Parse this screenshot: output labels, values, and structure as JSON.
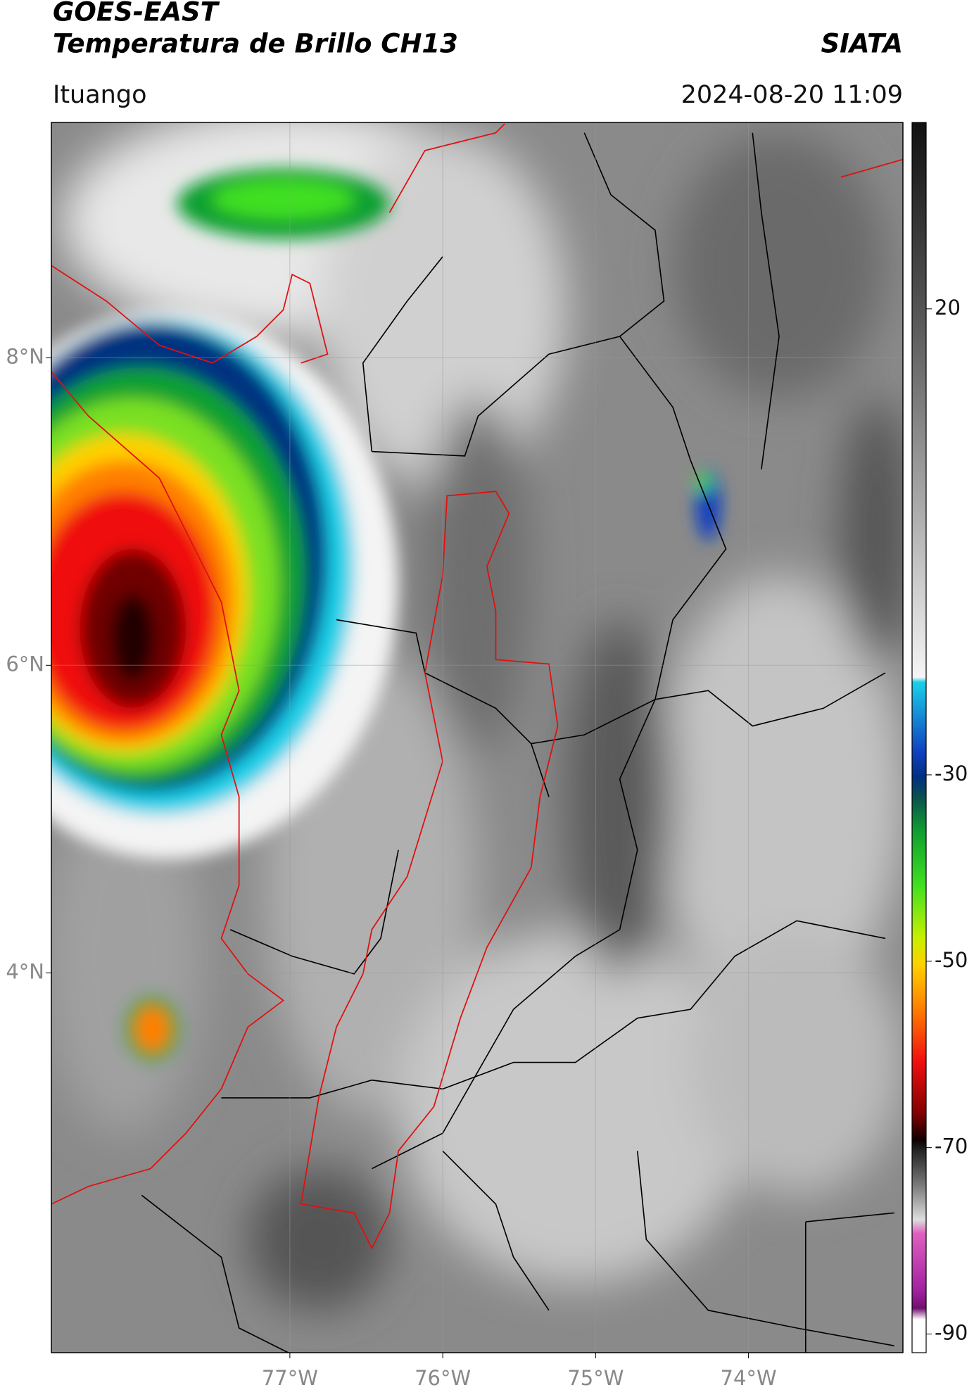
{
  "header": {
    "title_line1": "GOES-EAST",
    "title_line2": "Temperatura de Brillo CH13",
    "agency": "SIATA",
    "location": "Ituango",
    "timestamp": "2024-08-20 11:09"
  },
  "map": {
    "xlim": [
      -78.56,
      -72.99
    ],
    "ylim": [
      1.53,
      9.53
    ],
    "xticks": [
      {
        "value": -77,
        "label": "77°W"
      },
      {
        "value": -76,
        "label": "76°W"
      },
      {
        "value": -75,
        "label": "75°W"
      },
      {
        "value": -74,
        "label": "74°W"
      }
    ],
    "yticks": [
      {
        "value": 8,
        "label": "8°N"
      },
      {
        "value": 6,
        "label": "6°N"
      },
      {
        "value": 4,
        "label": "4°N"
      }
    ],
    "grid": true
  },
  "colorbar": {
    "clim": [
      -92,
      40
    ],
    "ticks": [
      20,
      -30,
      -50,
      -70,
      -90
    ]
  }
}
